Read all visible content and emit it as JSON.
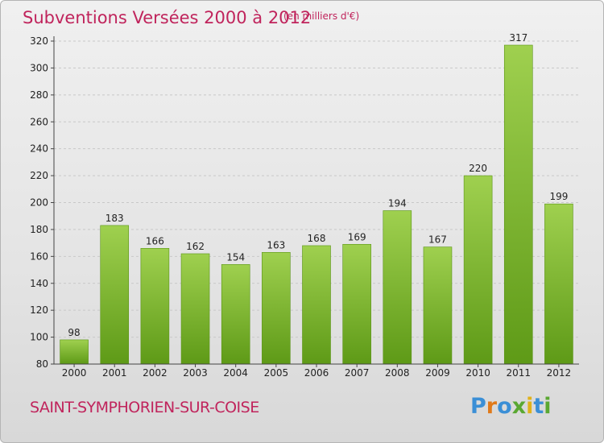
{
  "title": "Subventions Versées 2000 à 2012",
  "unit": "(en milliers d'€)",
  "commune": "SAINT-SYMPHORIEN-SUR-COISE",
  "logo": {
    "letters": [
      "P",
      "r",
      "o",
      "x",
      "i",
      "t",
      "i"
    ],
    "colors": [
      "#3b8fd6",
      "#e07a1a",
      "#3b8fd6",
      "#5aa832",
      "#e0b21a",
      "#3b8fd6",
      "#5aa832"
    ]
  },
  "colors": {
    "bar_top": "#9fd04f",
    "bar_bottom": "#5e9a17",
    "title": "#c0245c"
  },
  "chart_data": {
    "type": "bar",
    "categories": [
      "2000",
      "2001",
      "2002",
      "2003",
      "2004",
      "2005",
      "2006",
      "2007",
      "2008",
      "2009",
      "2010",
      "2011",
      "2012"
    ],
    "values": [
      98,
      183,
      166,
      162,
      154,
      163,
      168,
      169,
      194,
      167,
      220,
      317,
      199
    ],
    "ylim": [
      80,
      320
    ],
    "yticks": [
      80,
      100,
      120,
      140,
      160,
      180,
      200,
      220,
      240,
      260,
      280,
      300,
      320
    ],
    "grid": true,
    "data_labels": true
  }
}
